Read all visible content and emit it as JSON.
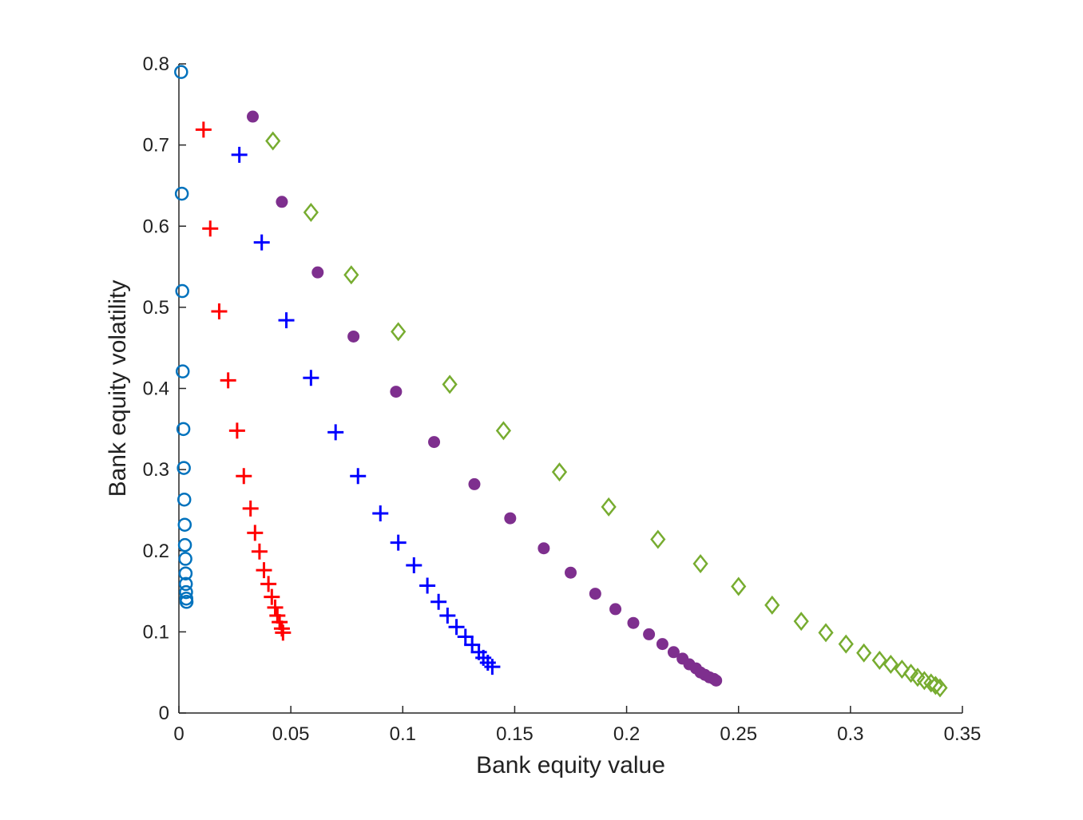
{
  "chart_data": {
    "type": "scatter",
    "title": "",
    "xlabel": "Bank equity value",
    "ylabel": "Bank equity volatility",
    "xlim": [
      0,
      0.35
    ],
    "ylim": [
      0,
      0.8
    ],
    "xticks": [
      0,
      0.05,
      0.1,
      0.15,
      0.2,
      0.25,
      0.3,
      0.35
    ],
    "xtick_labels": [
      "0",
      "0.05",
      "0.1",
      "0.15",
      "0.2",
      "0.25",
      "0.3",
      "0.35"
    ],
    "yticks": [
      0,
      0.1,
      0.2,
      0.3,
      0.4,
      0.5,
      0.6,
      0.7,
      0.8
    ],
    "ytick_labels": [
      "0",
      "0.1",
      "0.2",
      "0.3",
      "0.4",
      "0.5",
      "0.6",
      "0.7",
      "0.8"
    ],
    "grid": false,
    "legend": false,
    "series": [
      {
        "marker": "circle-open",
        "color": "#0072BD",
        "x": [
          0.001,
          0.0013,
          0.0015,
          0.0017,
          0.002,
          0.0022,
          0.0024,
          0.0026,
          0.0027,
          0.0029,
          0.003,
          0.0031,
          0.0032,
          0.0033,
          0.0034
        ],
        "y": [
          0.79,
          0.64,
          0.52,
          0.421,
          0.35,
          0.302,
          0.263,
          0.232,
          0.207,
          0.19,
          0.172,
          0.159,
          0.149,
          0.141,
          0.137
        ]
      },
      {
        "marker": "plus",
        "color": "#FF0000",
        "x": [
          0.011,
          0.014,
          0.018,
          0.022,
          0.026,
          0.029,
          0.032,
          0.034,
          0.036,
          0.038,
          0.04,
          0.0415,
          0.043,
          0.044,
          0.045,
          0.046,
          0.0465
        ],
        "y": [
          0.719,
          0.597,
          0.495,
          0.41,
          0.348,
          0.292,
          0.252,
          0.222,
          0.199,
          0.176,
          0.159,
          0.143,
          0.13,
          0.12,
          0.112,
          0.104,
          0.099
        ]
      },
      {
        "marker": "plus",
        "color": "#0000FF",
        "x": [
          0.027,
          0.037,
          0.048,
          0.059,
          0.07,
          0.08,
          0.09,
          0.098,
          0.105,
          0.111,
          0.116,
          0.12,
          0.124,
          0.128,
          0.131,
          0.134,
          0.136,
          0.138,
          0.14
        ],
        "y": [
          0.688,
          0.58,
          0.484,
          0.413,
          0.346,
          0.292,
          0.246,
          0.21,
          0.182,
          0.157,
          0.137,
          0.12,
          0.106,
          0.094,
          0.084,
          0.075,
          0.068,
          0.062,
          0.057
        ]
      },
      {
        "marker": "circle-filled",
        "color": "#7E2F8E",
        "x": [
          0.033,
          0.046,
          0.062,
          0.078,
          0.097,
          0.114,
          0.132,
          0.148,
          0.163,
          0.175,
          0.186,
          0.195,
          0.203,
          0.21,
          0.216,
          0.221,
          0.225,
          0.228,
          0.231,
          0.233,
          0.235,
          0.237,
          0.239,
          0.24
        ],
        "y": [
          0.735,
          0.63,
          0.543,
          0.464,
          0.396,
          0.334,
          0.282,
          0.24,
          0.203,
          0.173,
          0.147,
          0.128,
          0.111,
          0.097,
          0.085,
          0.075,
          0.067,
          0.06,
          0.055,
          0.05,
          0.047,
          0.044,
          0.042,
          0.04
        ]
      },
      {
        "marker": "diamond-open",
        "color": "#77AC30",
        "x": [
          0.042,
          0.059,
          0.077,
          0.098,
          0.121,
          0.145,
          0.17,
          0.192,
          0.214,
          0.233,
          0.25,
          0.265,
          0.278,
          0.289,
          0.298,
          0.306,
          0.313,
          0.318,
          0.323,
          0.327,
          0.33,
          0.333,
          0.336,
          0.338,
          0.34
        ],
        "y": [
          0.705,
          0.617,
          0.54,
          0.47,
          0.405,
          0.348,
          0.297,
          0.254,
          0.214,
          0.184,
          0.156,
          0.133,
          0.113,
          0.099,
          0.085,
          0.074,
          0.065,
          0.06,
          0.054,
          0.049,
          0.044,
          0.04,
          0.037,
          0.034,
          0.031
        ]
      }
    ]
  }
}
